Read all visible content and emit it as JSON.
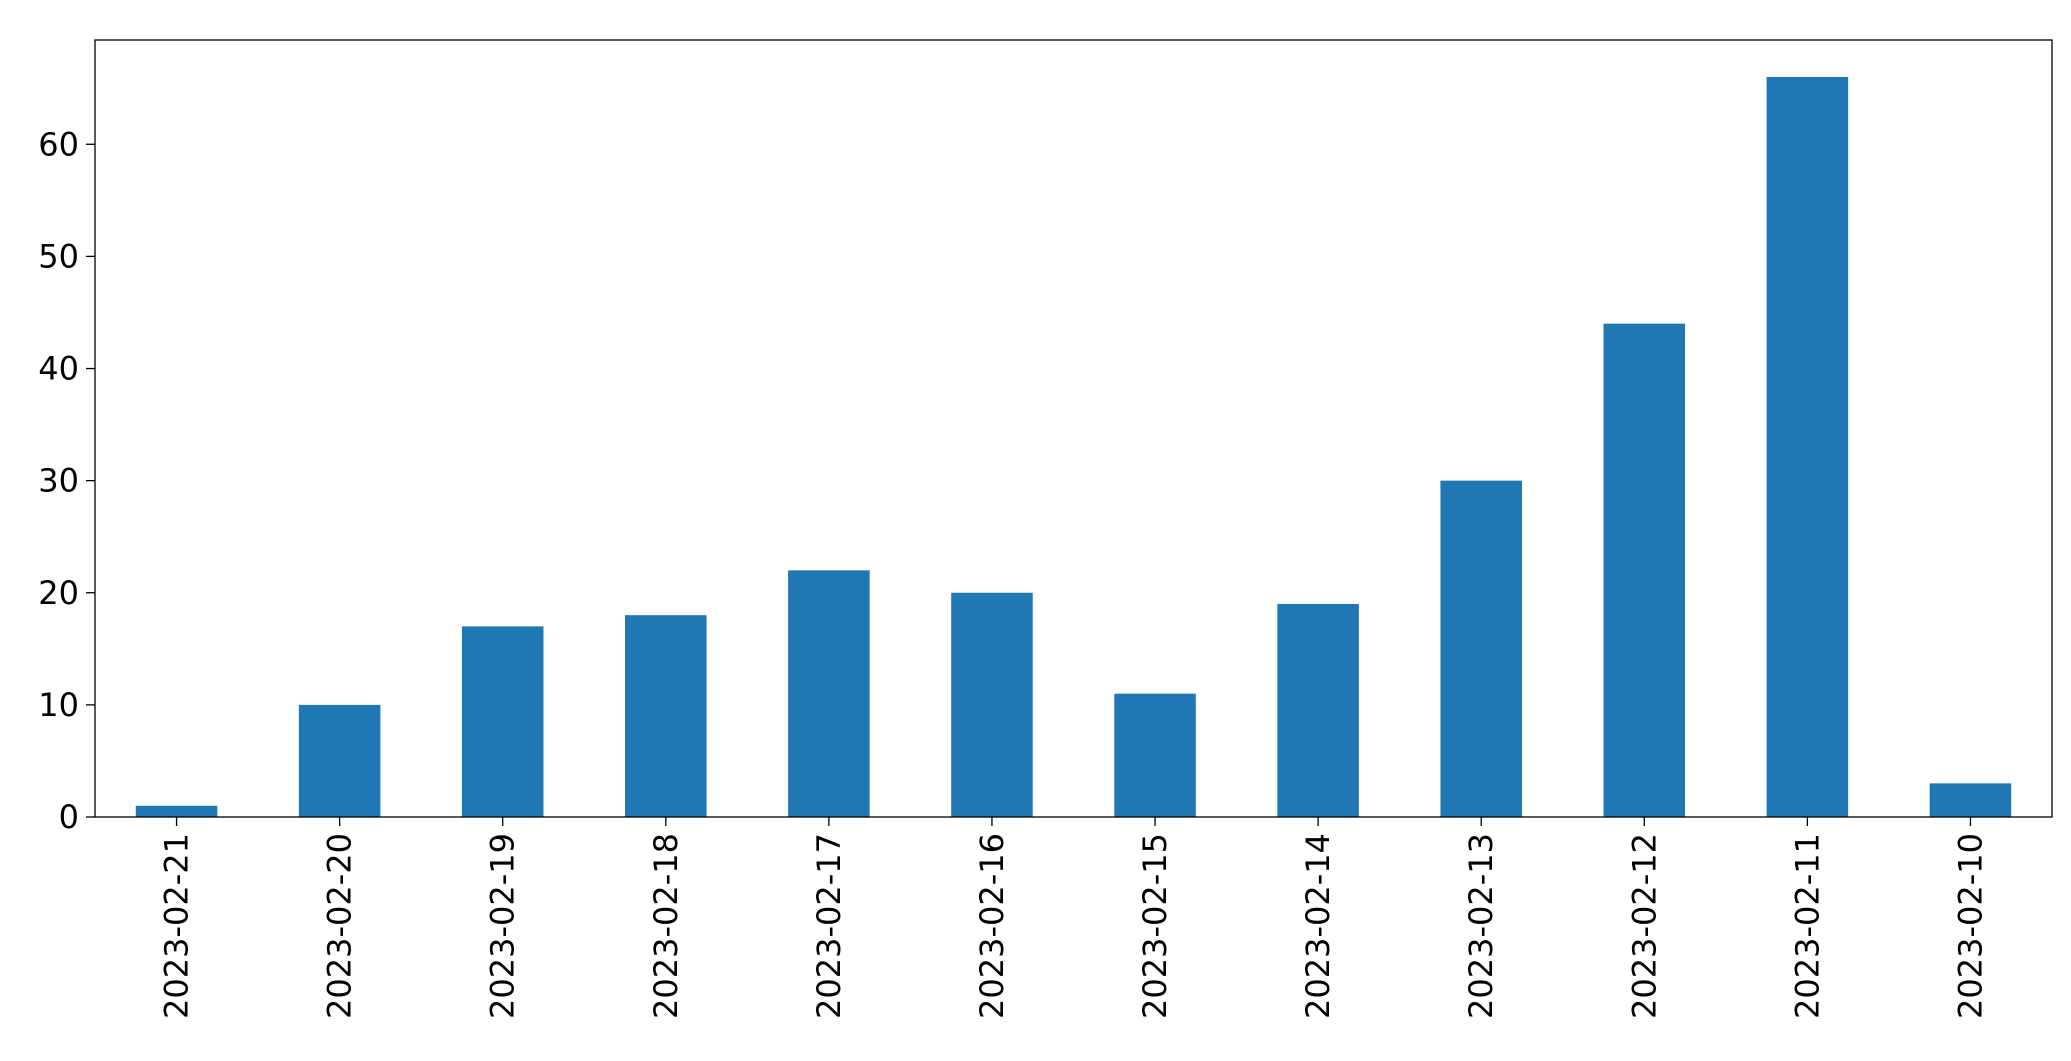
{
  "chart_data": {
    "type": "bar",
    "categories": [
      "2023-02-21",
      "2023-02-20",
      "2023-02-19",
      "2023-02-18",
      "2023-02-17",
      "2023-02-16",
      "2023-02-15",
      "2023-02-14",
      "2023-02-13",
      "2023-02-12",
      "2023-02-11",
      "2023-02-10"
    ],
    "values": [
      1,
      10,
      17,
      18,
      22,
      20,
      11,
      19,
      30,
      44,
      66,
      3
    ],
    "color": "#1f77b4",
    "ylim": [
      0,
      69.3
    ],
    "yticks": [
      0,
      10,
      20,
      30,
      40,
      50,
      60
    ],
    "grid": false
  }
}
